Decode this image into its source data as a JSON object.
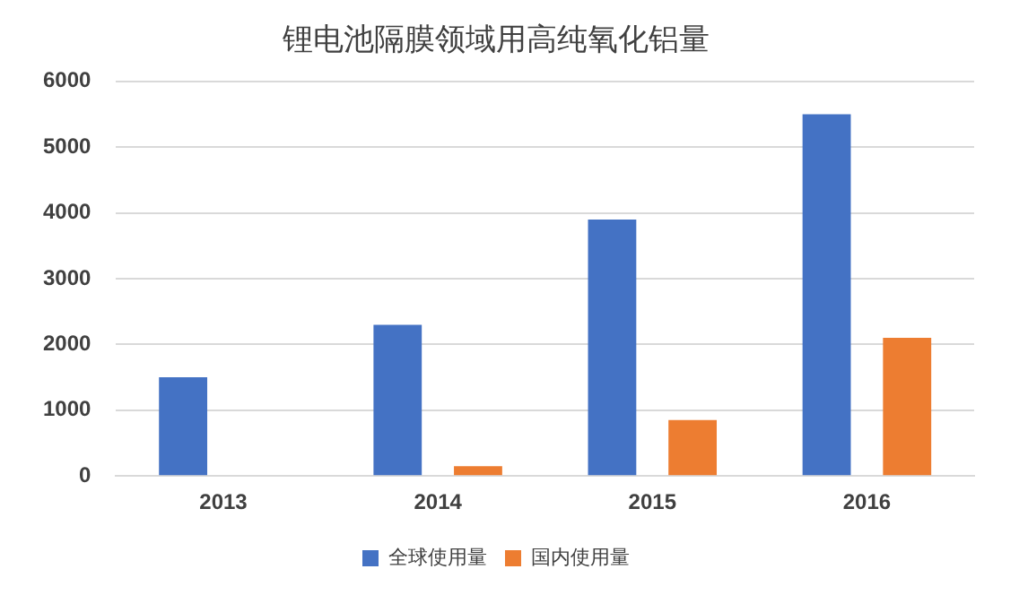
{
  "chart_data": {
    "type": "bar",
    "title": "锂电池隔膜领域用高纯氧化铝量",
    "categories": [
      "2013",
      "2014",
      "2015",
      "2016"
    ],
    "series": [
      {
        "name": "全球使用量",
        "color": "#4472c4",
        "values": [
          1500,
          2300,
          3900,
          5500
        ]
      },
      {
        "name": "国内使用量",
        "color": "#ed7d31",
        "values": [
          0,
          150,
          850,
          2100
        ]
      }
    ],
    "ylim": [
      0,
      6000
    ],
    "yticks": [
      0,
      1000,
      2000,
      3000,
      4000,
      5000,
      6000
    ],
    "grid": "y",
    "legend": "bottom"
  }
}
